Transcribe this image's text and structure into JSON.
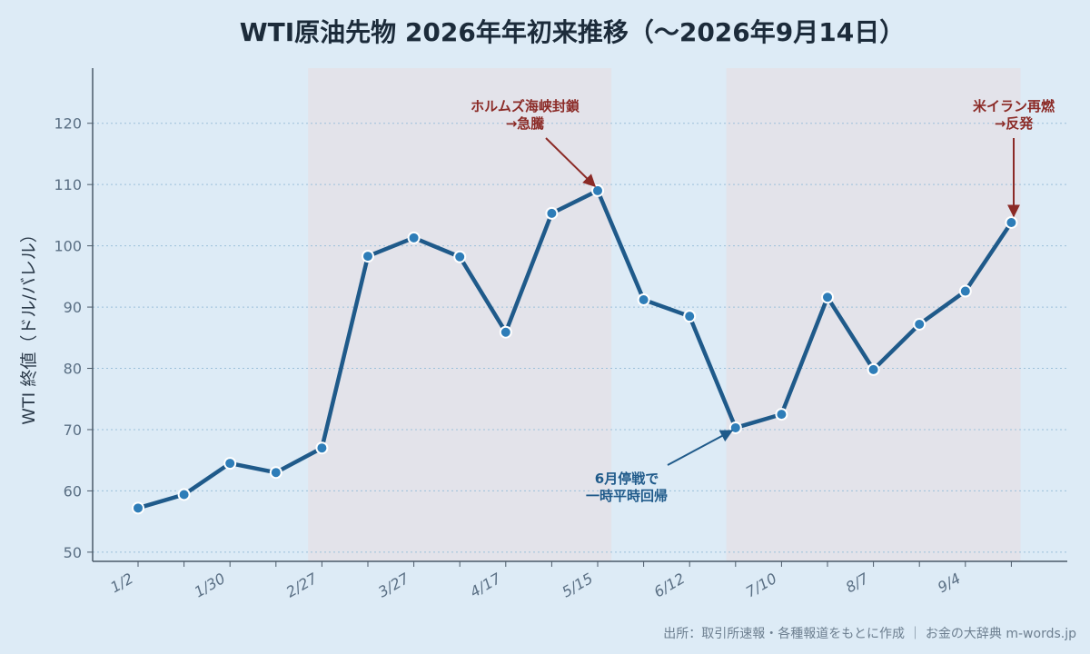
{
  "chart_data": {
    "type": "line",
    "title": "WTI原油先物 2026年年初来推移（〜2026年9月14日）",
    "ylabel": "WTI 終値（ドル/バレル）",
    "xlabel": "",
    "ylim": [
      48.5,
      129
    ],
    "yticks": [
      50,
      60,
      70,
      80,
      90,
      100,
      110,
      120
    ],
    "xtick_labels": [
      "1/2",
      "1/30",
      "2/27",
      "3/27",
      "4/17",
      "5/15",
      "6/12",
      "7/10",
      "8/7",
      "9/4"
    ],
    "xtick_indices": [
      0,
      2,
      4,
      6,
      8,
      10,
      12,
      14,
      16,
      18
    ],
    "grid": "y-dotted",
    "series": [
      {
        "name": "",
        "color": "#1f5a8a",
        "values": [
          57.2,
          59.4,
          64.5,
          63.0,
          67.0,
          98.3,
          101.3,
          98.2,
          85.9,
          105.3,
          109.0,
          91.2,
          88.5,
          70.3,
          72.5,
          91.6,
          79.8,
          87.2,
          92.6,
          103.8
        ]
      }
    ],
    "shaded_regions": [
      {
        "from_index": 3.7,
        "to_index": 10.3
      },
      {
        "from_index": 12.8,
        "to_index": 19.2
      }
    ],
    "annotations": [
      {
        "lines": [
          "ホルムズ海峡封鎖",
          "→急騰"
        ],
        "point_index": 10,
        "color": "#8b2a26"
      },
      {
        "lines": [
          "米イラン再燃",
          "→反発"
        ],
        "point_index": 19,
        "color": "#8b2a26"
      },
      {
        "lines": [
          "6月停戦で",
          "一時平時回帰"
        ],
        "point_index": 13,
        "color": "#1f5a8a"
      }
    ]
  },
  "source": "出所：取引所速報・各種報道をもとに作成 ｜ お金の大辞典 m-words.jp"
}
